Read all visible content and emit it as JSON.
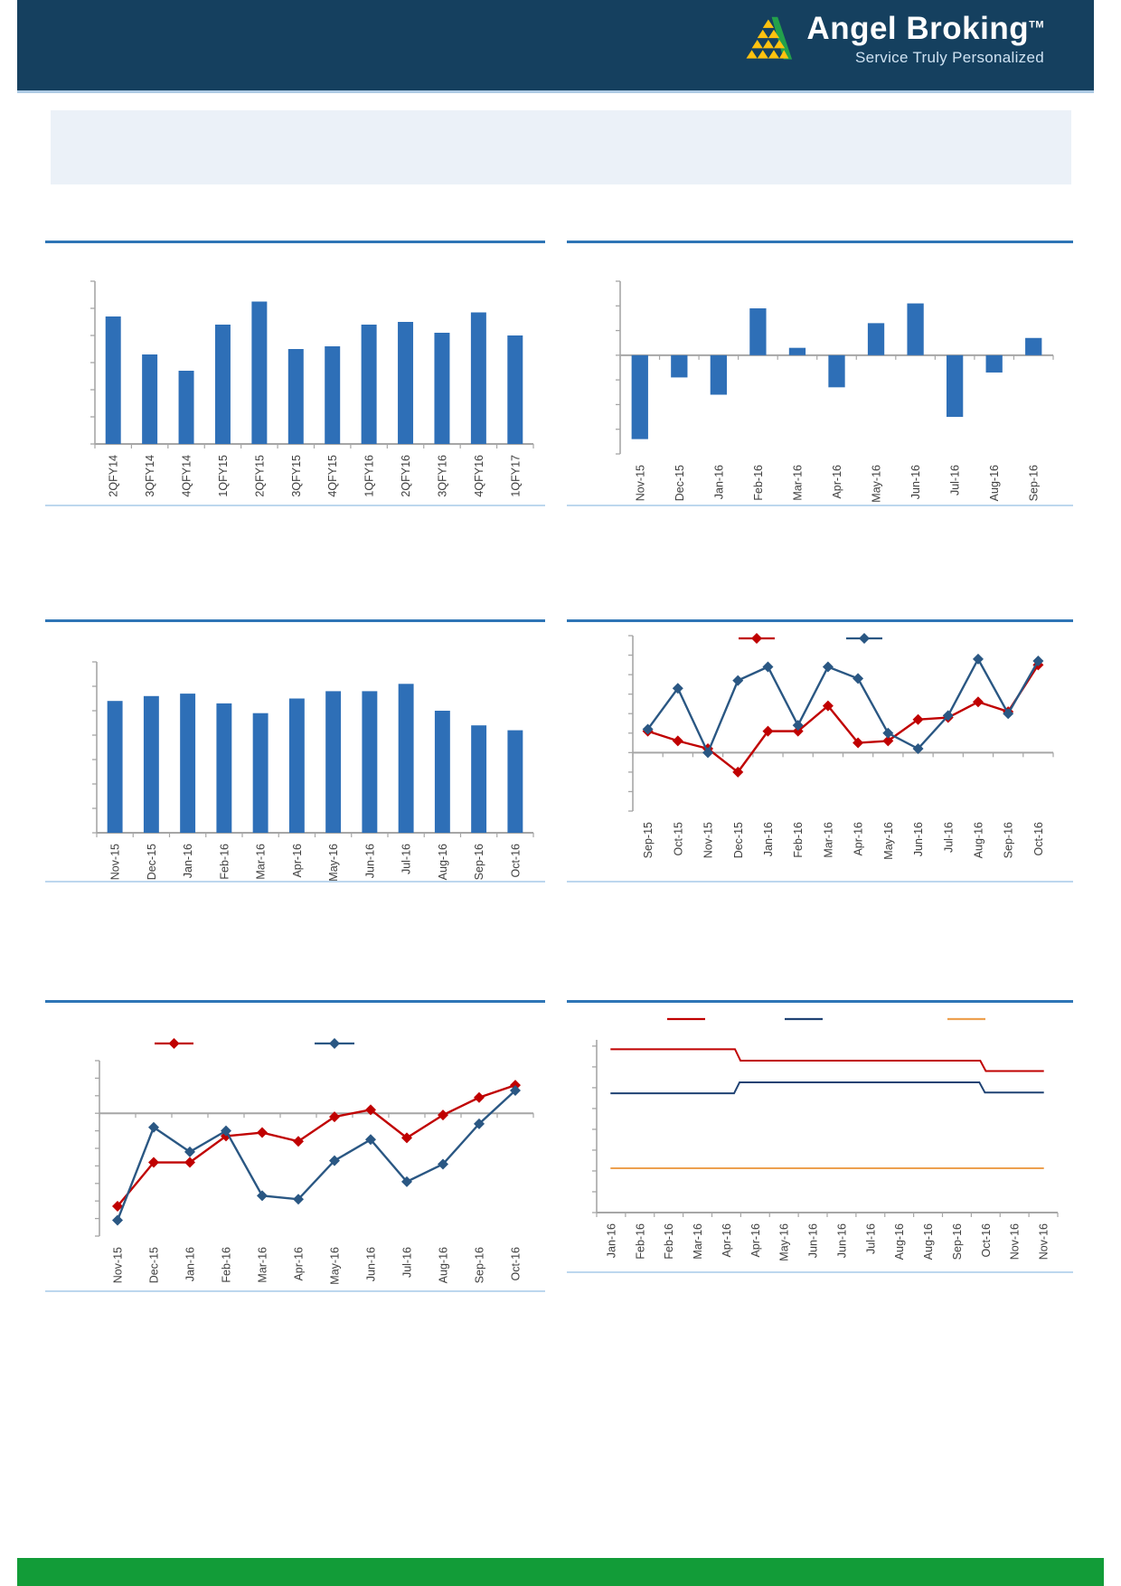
{
  "header": {
    "brand": "Angel Broking",
    "tm": "TM",
    "tagline": "Service Truly Personalized"
  },
  "chart_data": [
    {
      "type": "bar",
      "title": "",
      "categories": [
        "2QFY14",
        "3QFY14",
        "4QFY14",
        "1QFY15",
        "2QFY15",
        "3QFY15",
        "4QFY15",
        "1QFY16",
        "2QFY16",
        "3QFY16",
        "4QFY16",
        "1QFY17"
      ],
      "values": [
        4.7,
        3.3,
        2.7,
        4.4,
        5.25,
        3.5,
        3.6,
        4.4,
        4.5,
        4.1,
        4.85,
        4.0
      ],
      "ylim": [
        0,
        6
      ],
      "bar_color": "#2E6FB7",
      "grid": false,
      "y_tick_labels": []
    },
    {
      "type": "bar",
      "title": "",
      "categories": [
        "Nov-15",
        "Dec-15",
        "Jan-16",
        "Feb-16",
        "Mar-16",
        "Apr-16",
        "May-16",
        "Jun-16",
        "Jul-16",
        "Aug-16",
        "Sep-16"
      ],
      "values": [
        -3.4,
        -0.9,
        -1.6,
        1.9,
        0.3,
        -1.3,
        1.3,
        2.1,
        -2.5,
        -0.7,
        0.7
      ],
      "ylim": [
        -4,
        3
      ],
      "bar_color": "#2E6FB7",
      "grid": false,
      "y_tick_labels": []
    },
    {
      "type": "bar",
      "title": "",
      "categories": [
        "Nov-15",
        "Dec-15",
        "Jan-16",
        "Feb-16",
        "Mar-16",
        "Apr-16",
        "May-16",
        "Jun-16",
        "Jul-16",
        "Aug-16",
        "Sep-16",
        "Oct-16"
      ],
      "values": [
        5.4,
        5.6,
        5.7,
        5.3,
        4.9,
        5.5,
        5.8,
        5.8,
        6.1,
        5.0,
        4.4,
        4.2
      ],
      "ylim": [
        0,
        7
      ],
      "bar_color": "#2E6FB7",
      "grid": false,
      "y_tick_labels": []
    },
    {
      "type": "line",
      "title": "",
      "categories": [
        "Sep-15",
        "Oct-15",
        "Nov-15",
        "Dec-15",
        "Jan-16",
        "Feb-16",
        "Mar-16",
        "Apr-16",
        "May-16",
        "Jun-16",
        "Jul-16",
        "Aug-16",
        "Sep-16",
        "Oct-16"
      ],
      "series": [
        {
          "label": "",
          "color": "#C00000",
          "marker": "diamond",
          "values": [
            1.1,
            0.6,
            0.2,
            -1.0,
            1.1,
            1.1,
            2.4,
            0.5,
            0.6,
            1.7,
            1.8,
            2.6,
            2.1,
            4.5
          ]
        },
        {
          "label": "",
          "color": "#2A5783",
          "marker": "diamond",
          "values": [
            1.2,
            3.3,
            0.0,
            3.7,
            4.4,
            1.4,
            4.4,
            3.8,
            1.0,
            0.2,
            1.9,
            4.8,
            2.0,
            4.7
          ]
        }
      ],
      "ylim": [
        -3,
        6
      ],
      "grid": false,
      "legend_position": "top",
      "y_tick_labels": []
    },
    {
      "type": "line",
      "title": "",
      "categories": [
        "Nov-15",
        "Dec-15",
        "Jan-16",
        "Feb-16",
        "Mar-16",
        "Apr-16",
        "May-16",
        "Jun-16",
        "Jul-16",
        "Aug-16",
        "Sep-16",
        "Oct-16"
      ],
      "series": [
        {
          "label": "",
          "color": "#C00000",
          "marker": "diamond",
          "values": [
            -5.3,
            -2.8,
            -2.8,
            -1.3,
            -1.1,
            -1.6,
            -0.2,
            0.2,
            -1.4,
            -0.1,
            0.9,
            1.6
          ]
        },
        {
          "label": "",
          "color": "#2A5783",
          "marker": "diamond",
          "values": [
            -6.1,
            -0.8,
            -2.2,
            -1.0,
            -4.7,
            -4.9,
            -2.7,
            -1.5,
            -3.9,
            -2.9,
            -0.6,
            1.3
          ]
        }
      ],
      "ylim": [
        -7,
        3
      ],
      "grid": false,
      "legend_position": "top",
      "y_tick_labels": []
    },
    {
      "type": "step-line",
      "title": "",
      "categories": [
        "Jan-16",
        "Feb-16",
        "Feb-16",
        "Mar-16",
        "Apr-16",
        "Apr-16",
        "May-16",
        "Jun-16",
        "Jun-16",
        "Jul-16",
        "Aug-16",
        "Aug-16",
        "Sep-16",
        "Oct-16",
        "Nov-16",
        "Nov-16"
      ],
      "series": [
        {
          "label": "",
          "color": "#C00000",
          "points": [
            [
              0.03,
              7.85
            ],
            [
              0.3,
              7.85
            ],
            [
              0.312,
              7.3
            ],
            [
              0.832,
              7.3
            ],
            [
              0.844,
              6.8
            ],
            [
              0.97,
              6.8
            ]
          ]
        },
        {
          "label": "",
          "color": "#1F4273",
          "points": [
            [
              0.03,
              5.73
            ],
            [
              0.298,
              5.73
            ],
            [
              0.31,
              6.26
            ],
            [
              0.83,
              6.26
            ],
            [
              0.842,
              5.77
            ],
            [
              0.97,
              5.77
            ]
          ]
        },
        {
          "label": "",
          "color": "#EDA04F",
          "points": [
            [
              0.03,
              2.13
            ],
            [
              0.97,
              2.13
            ]
          ]
        }
      ],
      "ylim": [
        0,
        8.3
      ],
      "grid": false,
      "legend_position": "top",
      "y_tick_labels": []
    }
  ]
}
